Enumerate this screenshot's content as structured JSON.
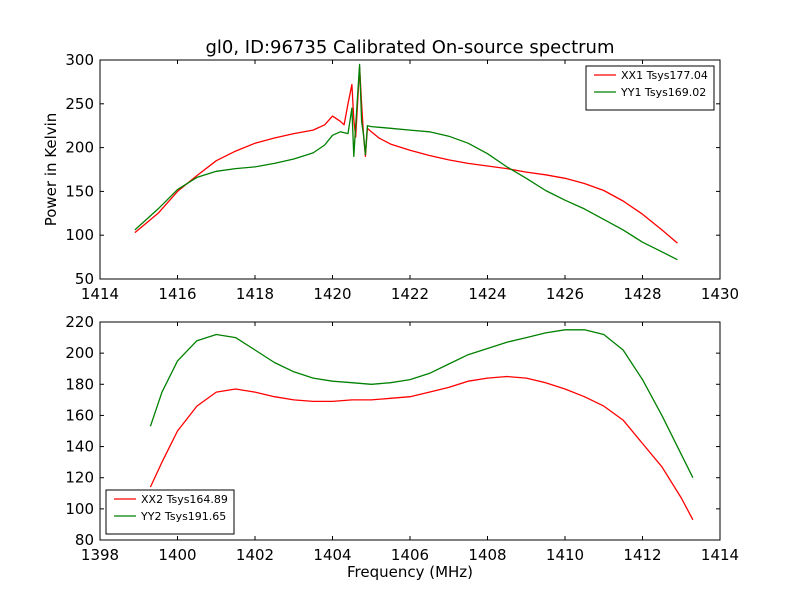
{
  "figure": {
    "title": "gl0, ID:96735 Calibrated On-source spectrum",
    "xlabel": "Frequency (MHz)"
  },
  "chart_data": [
    {
      "type": "line",
      "title": "gl0, ID:96735 Calibrated On-source spectrum",
      "xlabel": "",
      "ylabel": "Power in Kelvin",
      "xlim": [
        1414,
        1430
      ],
      "ylim": [
        50,
        300
      ],
      "xticks": [
        1414,
        1416,
        1418,
        1420,
        1422,
        1424,
        1426,
        1428,
        1430
      ],
      "yticks": [
        50,
        100,
        150,
        200,
        250,
        300
      ],
      "grid": false,
      "legend_position": "top-right",
      "series": [
        {
          "name": "XX1 Tsys177.04",
          "color": "#ff0000",
          "x": [
            1414.9,
            1415.5,
            1416.0,
            1416.5,
            1417.0,
            1417.5,
            1418.0,
            1418.5,
            1419.0,
            1419.5,
            1419.8,
            1420.0,
            1420.2,
            1420.3,
            1420.4,
            1420.5,
            1420.55,
            1420.6,
            1420.7,
            1420.75,
            1420.8,
            1420.85,
            1420.9,
            1421.0,
            1421.2,
            1421.5,
            1422.0,
            1422.5,
            1423.0,
            1423.5,
            1424.0,
            1424.5,
            1425.0,
            1425.5,
            1426.0,
            1426.5,
            1427.0,
            1427.5,
            1428.0,
            1428.5,
            1428.9
          ],
          "y": [
            103,
            125,
            150,
            168,
            185,
            196,
            205,
            211,
            216,
            220,
            226,
            236,
            230,
            226,
            250,
            272,
            232,
            212,
            292,
            250,
            215,
            190,
            222,
            218,
            211,
            204,
            197,
            191,
            186,
            182,
            179,
            176,
            172,
            169,
            165,
            159,
            151,
            139,
            124,
            106,
            91
          ]
        },
        {
          "name": "YY1 Tsys169.02",
          "color": "#008000",
          "x": [
            1414.9,
            1415.5,
            1416.0,
            1416.5,
            1417.0,
            1417.5,
            1418.0,
            1418.5,
            1419.0,
            1419.5,
            1419.8,
            1420.0,
            1420.2,
            1420.4,
            1420.5,
            1420.55,
            1420.6,
            1420.7,
            1420.75,
            1420.8,
            1420.85,
            1420.9,
            1421.0,
            1421.5,
            1422.0,
            1422.5,
            1423.0,
            1423.5,
            1424.0,
            1424.5,
            1425.0,
            1425.5,
            1426.0,
            1426.5,
            1427.0,
            1427.5,
            1428.0,
            1428.5,
            1428.9
          ],
          "y": [
            106,
            130,
            152,
            166,
            173,
            176,
            178,
            182,
            187,
            194,
            203,
            214,
            218,
            216,
            245,
            190,
            225,
            295,
            230,
            215,
            192,
            225,
            224,
            222,
            220,
            218,
            213,
            205,
            193,
            178,
            165,
            151,
            140,
            130,
            118,
            106,
            92,
            81,
            72
          ]
        }
      ]
    },
    {
      "type": "line",
      "title": "",
      "xlabel": "Frequency (MHz)",
      "ylabel": "",
      "xlim": [
        1398,
        1414
      ],
      "ylim": [
        80,
        220
      ],
      "xticks": [
        1398,
        1400,
        1402,
        1404,
        1406,
        1408,
        1410,
        1412,
        1414
      ],
      "yticks": [
        80,
        100,
        120,
        140,
        160,
        180,
        200,
        220
      ],
      "grid": false,
      "legend_position": "bottom-left",
      "series": [
        {
          "name": "XX2 Tsys164.89",
          "color": "#ff0000",
          "x": [
            1399.3,
            1399.6,
            1400.0,
            1400.5,
            1401.0,
            1401.5,
            1402.0,
            1402.5,
            1403.0,
            1403.5,
            1404.0,
            1404.5,
            1405.0,
            1405.5,
            1406.0,
            1406.5,
            1407.0,
            1407.5,
            1408.0,
            1408.5,
            1409.0,
            1409.5,
            1410.0,
            1410.5,
            1411.0,
            1411.5,
            1412.0,
            1412.5,
            1413.0,
            1413.3
          ],
          "y": [
            114,
            130,
            150,
            166,
            175,
            177,
            175,
            172,
            170,
            169,
            169,
            170,
            170,
            171,
            172,
            175,
            178,
            182,
            184,
            185,
            184,
            181,
            177,
            172,
            166,
            157,
            142,
            127,
            107,
            93
          ]
        },
        {
          "name": "YY2 Tsys191.65",
          "color": "#008000",
          "x": [
            1399.3,
            1399.6,
            1400.0,
            1400.5,
            1401.0,
            1401.5,
            1402.0,
            1402.5,
            1403.0,
            1403.5,
            1404.0,
            1404.5,
            1405.0,
            1405.5,
            1406.0,
            1406.5,
            1407.0,
            1407.5,
            1408.0,
            1408.5,
            1409.0,
            1409.5,
            1410.0,
            1410.5,
            1411.0,
            1411.5,
            1412.0,
            1412.5,
            1413.0,
            1413.3
          ],
          "y": [
            153,
            175,
            195,
            208,
            212,
            210,
            202,
            194,
            188,
            184,
            182,
            181,
            180,
            181,
            183,
            187,
            193,
            199,
            203,
            207,
            210,
            213,
            215,
            215,
            212,
            202,
            183,
            160,
            135,
            120
          ]
        }
      ]
    }
  ]
}
